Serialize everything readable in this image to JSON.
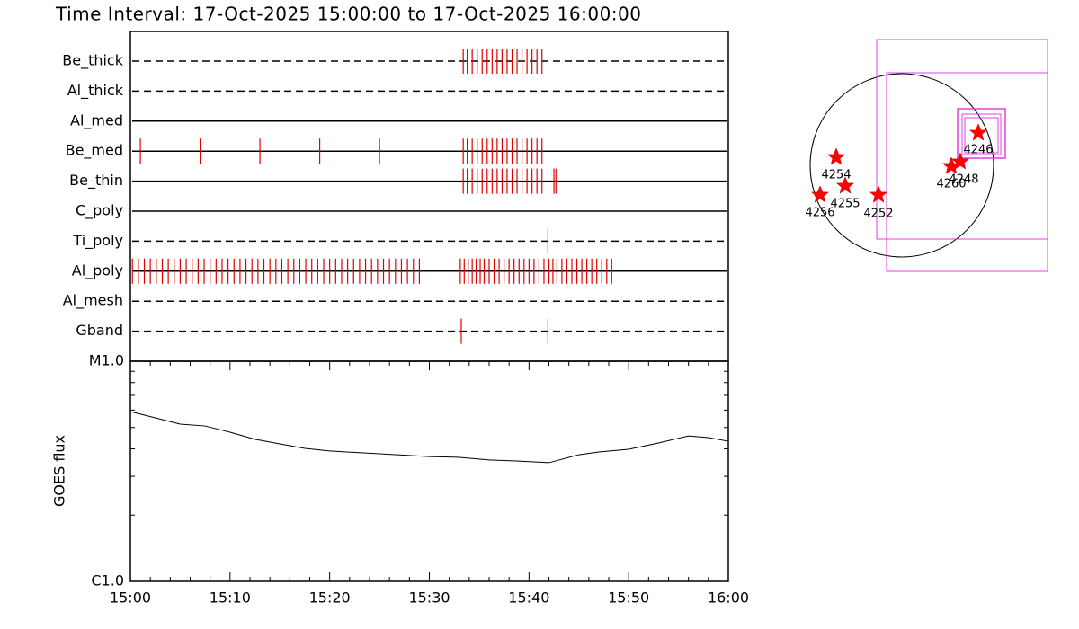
{
  "title": "Time Interval: 17-Oct-2025 15:00:00 to 17-Oct-2025 16:00:00",
  "chart_data": [
    {
      "type": "timeline",
      "xlim": [
        0,
        60
      ],
      "filters": [
        {
          "name": "Be_thick",
          "style": "dashed",
          "color": "#e00000",
          "times": [
            33.4,
            33.8,
            34.3,
            34.8,
            35.3,
            35.8,
            36.3,
            36.8,
            37.3,
            37.8,
            38.3,
            38.8,
            39.3,
            39.8,
            40.3,
            40.8,
            41.3
          ]
        },
        {
          "name": "Al_thick",
          "style": "dashed",
          "color": "#e00000",
          "times": []
        },
        {
          "name": "Al_med",
          "style": "solid",
          "color": "#e00000",
          "times": []
        },
        {
          "name": "Be_med",
          "style": "solid",
          "color": "#e00000",
          "times": [
            1.0,
            7.0,
            13.0,
            19.0,
            25.0,
            33.4,
            33.8,
            34.3,
            34.8,
            35.3,
            35.8,
            36.3,
            36.8,
            37.3,
            37.8,
            38.3,
            38.8,
            39.3,
            39.8,
            40.3,
            40.8,
            41.3
          ]
        },
        {
          "name": "Be_thin",
          "style": "solid",
          "color": "#e00000",
          "times": [
            33.4,
            33.8,
            34.3,
            34.8,
            35.3,
            35.8,
            36.3,
            36.8,
            37.3,
            37.8,
            38.3,
            38.8,
            39.3,
            39.8,
            40.3,
            40.8,
            41.3,
            42.5,
            42.7
          ]
        },
        {
          "name": "C_poly",
          "style": "solid",
          "color": "#e00000",
          "times": []
        },
        {
          "name": "Ti_poly",
          "style": "dashed",
          "color": "#2020a0",
          "times": [
            41.9
          ]
        },
        {
          "name": "Al_poly",
          "style": "solid",
          "color": "#e00000",
          "times": [
            0.2,
            0.8,
            1.4,
            2.0,
            2.6,
            3.2,
            3.8,
            4.4,
            5.0,
            5.6,
            6.2,
            6.8,
            7.4,
            8.0,
            8.6,
            9.2,
            9.8,
            10.4,
            11.0,
            11.6,
            12.2,
            12.8,
            13.4,
            14.0,
            14.6,
            15.2,
            15.8,
            16.4,
            17.0,
            17.6,
            18.2,
            18.8,
            19.4,
            20.0,
            20.6,
            21.2,
            21.8,
            22.4,
            23.0,
            23.6,
            24.2,
            24.8,
            25.4,
            26.0,
            26.6,
            27.2,
            27.8,
            28.4,
            29.0,
            33.1,
            33.5,
            33.9,
            34.3,
            34.7,
            35.1,
            35.5,
            36.0,
            36.5,
            37.0,
            37.5,
            38.0,
            38.5,
            39.0,
            39.5,
            40.0,
            40.5,
            41.0,
            41.5,
            42.0,
            42.4,
            42.8,
            43.3,
            43.8,
            44.3,
            44.8,
            45.3,
            45.8,
            46.3,
            46.8,
            47.3,
            47.8,
            48.3
          ]
        },
        {
          "name": "Al_mesh",
          "style": "dashed",
          "color": "#e00000",
          "times": []
        },
        {
          "name": "Gband",
          "style": "dashed",
          "color": "#e00000",
          "times": [
            33.2,
            41.9
          ]
        }
      ]
    },
    {
      "type": "line",
      "ylabel": "GOES flux",
      "color": "#000000",
      "log_y": true,
      "x": [
        0,
        2.5,
        5,
        7.5,
        10,
        12.5,
        15,
        17.5,
        20,
        25,
        30,
        33,
        36,
        39,
        42,
        45,
        47,
        50,
        53,
        56,
        58,
        60
      ],
      "values": [
        5.91e-06,
        5.53e-06,
        5.18e-06,
        5.08e-06,
        4.76e-06,
        4.42e-06,
        4.21e-06,
        4.02e-06,
        3.91e-06,
        3.8e-06,
        3.69e-06,
        3.66e-06,
        3.56e-06,
        3.52e-06,
        3.46e-06,
        3.76e-06,
        3.87e-06,
        3.98e-06,
        4.25e-06,
        4.58e-06,
        4.5e-06,
        4.33e-06
      ],
      "xlim": [
        0,
        60
      ],
      "xticks": [
        {
          "value": 0,
          "label": "15:00"
        },
        {
          "value": 10,
          "label": "15:10"
        },
        {
          "value": 20,
          "label": "15:20"
        },
        {
          "value": 30,
          "label": "15:30"
        },
        {
          "value": 40,
          "label": "15:40"
        },
        {
          "value": 50,
          "label": "15:50"
        },
        {
          "value": 60,
          "label": "16:00"
        }
      ],
      "xminorticks": [
        2,
        4,
        6,
        8,
        12,
        14,
        16,
        18,
        22,
        24,
        26,
        28,
        32,
        34,
        36,
        38,
        42,
        44,
        46,
        48,
        52,
        54,
        56,
        58
      ],
      "ylim": [
        1e-06,
        1e-05
      ],
      "yticks": [
        {
          "value": 1e-06,
          "label": "C1.0"
        },
        {
          "value": 1e-05,
          "label": "M1.0"
        }
      ],
      "yminorticks": [
        2e-06,
        3e-06,
        4e-06,
        5e-06,
        6e-06,
        7e-06,
        8e-06,
        9e-06
      ]
    }
  ],
  "map": {
    "regions": [
      "4254",
      "4255",
      "4256",
      "4252",
      "4260",
      "4248",
      "4246"
    ]
  }
}
